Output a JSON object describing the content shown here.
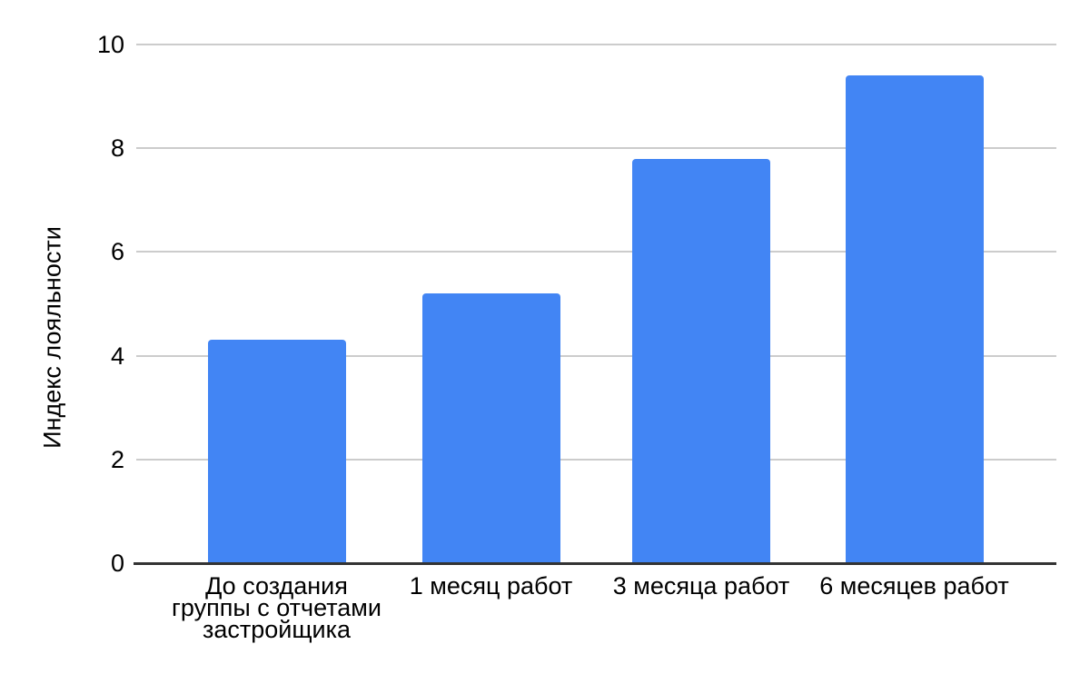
{
  "chart_data": {
    "type": "bar",
    "title": "",
    "xlabel": "",
    "ylabel": "Индекс лояльности",
    "categories": [
      "До создания\nгруппы с отчетами\nзастройщика",
      "1 месяц работ",
      "3 месяца работ",
      "6 месяцев работ"
    ],
    "values": [
      4.3,
      5.2,
      7.8,
      9.4
    ],
    "ylim": [
      0,
      10
    ],
    "yticks": [
      0,
      2,
      4,
      6,
      8,
      10
    ],
    "grid": true,
    "legend_position": "none",
    "bar_color": "#4285F4",
    "gridline_color": "#cccccc",
    "axis_line_color": "#333333",
    "text_color": "#000000",
    "background_color": "#ffffff"
  }
}
